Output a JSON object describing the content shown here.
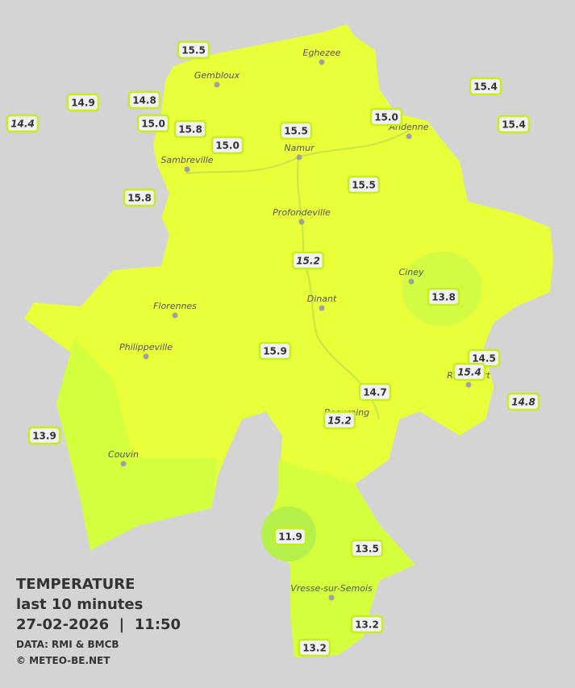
{
  "legend": {
    "title": "TEMPERATURE",
    "subtitle": "last 10 minutes",
    "datetime": "27-02-2026  |  11:50",
    "source": "DATA: RMI & BMCB",
    "copyright": "© METEO-BE.NET"
  },
  "towns": [
    {
      "name": "Eghezee"
    },
    {
      "name": "Gembloux"
    },
    {
      "name": "Andenne"
    },
    {
      "name": "Namur"
    },
    {
      "name": "Sambreville"
    },
    {
      "name": "Profondeville"
    },
    {
      "name": "Ciney"
    },
    {
      "name": "Dinant"
    },
    {
      "name": "Florennes"
    },
    {
      "name": "Philippeville"
    },
    {
      "name": "Rochefort"
    },
    {
      "name": "Beauraing"
    },
    {
      "name": "Couvin"
    },
    {
      "name": "Vresse-sur-Semois"
    }
  ],
  "stations": [
    {
      "value": "15.5",
      "italic": false
    },
    {
      "value": "14.9",
      "italic": false
    },
    {
      "value": "14.8",
      "italic": false
    },
    {
      "value": "14.4",
      "italic": true
    },
    {
      "value": "15.0",
      "italic": false
    },
    {
      "value": "15.8",
      "italic": false
    },
    {
      "value": "15.0",
      "italic": false
    },
    {
      "value": "15.5",
      "italic": false
    },
    {
      "value": "15.0",
      "italic": false
    },
    {
      "value": "15.4",
      "italic": false
    },
    {
      "value": "15.4",
      "italic": false
    },
    {
      "value": "15.5",
      "italic": false
    },
    {
      "value": "15.8",
      "italic": false
    },
    {
      "value": "15.2",
      "italic": true
    },
    {
      "value": "13.8",
      "italic": false
    },
    {
      "value": "15.9",
      "italic": false
    },
    {
      "value": "14.5",
      "italic": false
    },
    {
      "value": "15.4",
      "italic": true
    },
    {
      "value": "14.7",
      "italic": false
    },
    {
      "value": "14.8",
      "italic": true
    },
    {
      "value": "15.2",
      "italic": true
    },
    {
      "value": "13.9",
      "italic": false
    },
    {
      "value": "11.9",
      "italic": false
    },
    {
      "value": "13.5",
      "italic": false
    },
    {
      "value": "13.2",
      "italic": false
    },
    {
      "value": "13.2",
      "italic": false
    }
  ]
}
